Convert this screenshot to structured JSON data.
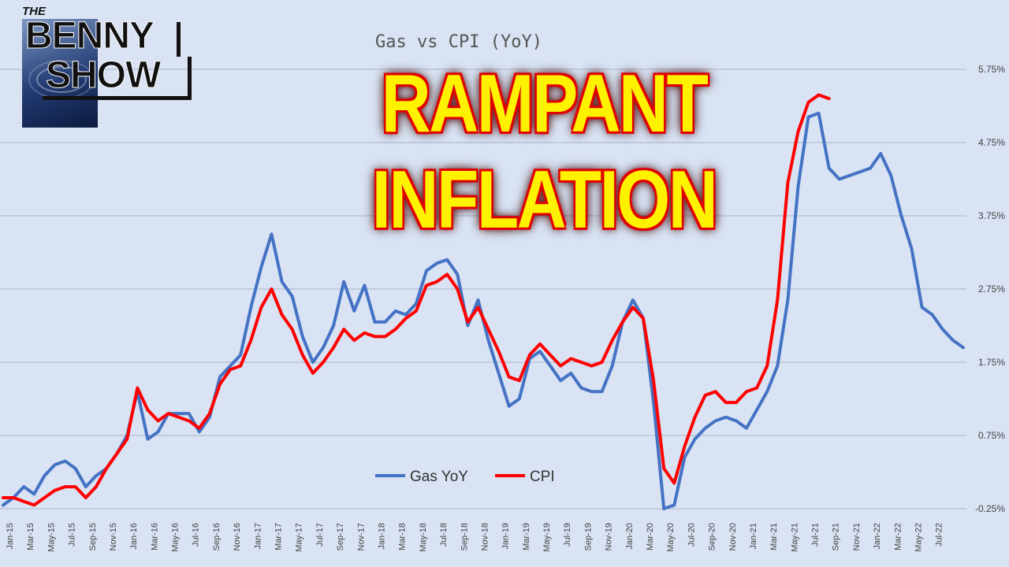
{
  "logo": {
    "the": "THE",
    "line1": "BENNY",
    "line2": "SHOW"
  },
  "headline": {
    "line1": "RAMPANT",
    "line2": "INFLATION"
  },
  "colors": {
    "gas": "#4472c4",
    "cpi": "#ff0000",
    "background": "#d9e3f3",
    "headline": "#fff200",
    "headline_outline": "#e00000"
  },
  "chart_data": {
    "type": "line",
    "title": "Gas vs CPI (YoY)",
    "xlabel": "",
    "ylabel": "",
    "y_ticks": [
      "5.75%",
      "4.75%",
      "3.75%",
      "2.75%",
      "1.75%",
      "0.75%",
      "-0.25%"
    ],
    "ylim": [
      -0.25,
      5.75
    ],
    "y_axis_side": "right",
    "grid": true,
    "legend_position": "bottom-center",
    "x_ticks": [
      "Jan-15",
      "Mar-15",
      "May-15",
      "Jul-15",
      "Sep-15",
      "Nov-15",
      "Jan-16",
      "Mar-16",
      "May-16",
      "Jul-16",
      "Sep-16",
      "Nov-16",
      "Jan-17",
      "Mar-17",
      "May-17",
      "Jul-17",
      "Sep-17",
      "Nov-17",
      "Jan-18",
      "Mar-18",
      "May-18",
      "Jul-18",
      "Sep-18",
      "Nov-18",
      "Jan-19",
      "Mar-19",
      "May-19",
      "Jul-19",
      "Sep-19",
      "Nov-19",
      "Jan-20",
      "Mar-20",
      "May-20",
      "Jul-20",
      "Sep-20",
      "Nov-20",
      "Jan-21",
      "Mar-21",
      "May-21",
      "Jul-21",
      "Sep-21",
      "Nov-21",
      "Jan-22",
      "Mar-22",
      "May-22",
      "Jul-22"
    ],
    "series": [
      {
        "name": "Gas YoY",
        "values": [
          -0.2,
          -0.1,
          0.05,
          -0.05,
          0.2,
          0.35,
          0.4,
          0.3,
          0.05,
          0.2,
          0.3,
          0.5,
          0.75,
          1.35,
          0.7,
          0.8,
          1.05,
          1.05,
          1.05,
          0.8,
          1.0,
          1.55,
          1.7,
          1.85,
          2.5,
          3.05,
          3.5,
          2.85,
          2.65,
          2.1,
          1.75,
          1.95,
          2.25,
          2.85,
          2.45,
          2.8,
          2.3,
          2.3,
          2.45,
          2.4,
          2.55,
          3.0,
          3.1,
          3.15,
          2.95,
          2.25,
          2.6,
          2.05,
          1.6,
          1.15,
          1.25,
          1.8,
          1.9,
          1.7,
          1.5,
          1.6,
          1.4,
          1.35,
          1.35,
          1.7,
          2.3,
          2.6,
          2.35,
          1.2,
          -0.25,
          -0.2,
          0.45,
          0.7,
          0.85,
          0.95,
          1.0,
          0.95,
          0.85,
          1.1,
          1.35,
          1.7,
          2.6,
          4.15,
          5.1,
          5.15,
          4.4,
          4.25,
          4.3,
          4.35,
          4.4,
          4.6,
          4.3,
          3.75,
          3.3,
          2.5,
          2.4,
          2.2,
          2.05,
          1.95
        ]
      },
      {
        "name": "CPI",
        "values": [
          -0.1,
          -0.1,
          -0.15,
          -0.2,
          -0.1,
          0.0,
          0.05,
          0.05,
          -0.1,
          0.05,
          0.3,
          0.5,
          0.7,
          1.4,
          1.1,
          0.95,
          1.05,
          1.0,
          0.95,
          0.85,
          1.05,
          1.45,
          1.65,
          1.7,
          2.05,
          2.5,
          2.75,
          2.4,
          2.2,
          1.85,
          1.6,
          1.75,
          1.95,
          2.2,
          2.05,
          2.15,
          2.1,
          2.1,
          2.2,
          2.35,
          2.45,
          2.8,
          2.85,
          2.95,
          2.75,
          2.3,
          2.5,
          2.2,
          1.9,
          1.55,
          1.5,
          1.85,
          2.0,
          1.85,
          1.7,
          1.8,
          1.75,
          1.7,
          1.75,
          2.05,
          2.3,
          2.5,
          2.35,
          1.5,
          0.3,
          0.1,
          0.6,
          1.0,
          1.3,
          1.35,
          1.2,
          1.2,
          1.35,
          1.4,
          1.7,
          2.6,
          4.2,
          4.9,
          5.3,
          5.4,
          5.35
        ]
      }
    ]
  }
}
